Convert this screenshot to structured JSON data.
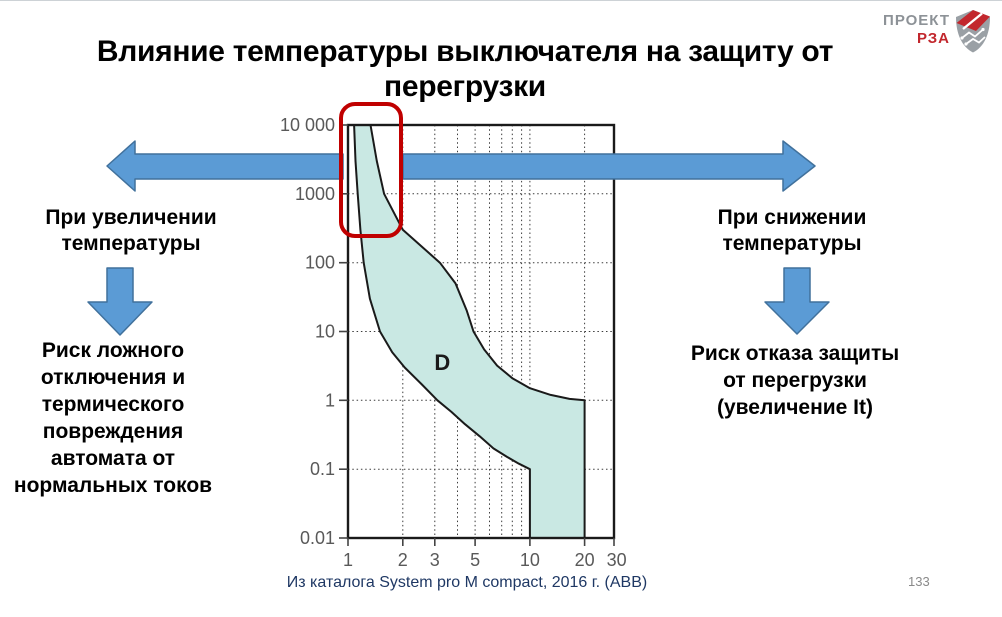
{
  "title": "Влияние температуры выключателя на защиту от перегрузки",
  "logo": {
    "line1": "ПРОЕКТ",
    "line2": "РЗА",
    "shield_icon": "shield-circuit-emblem",
    "gray": "#9aa0a5",
    "red": "#c2272d"
  },
  "annotations": {
    "left_condition": "При увеличении\nтемпературы",
    "left_risk": "Риск ложного\nотключения и\nтермического\nповреждения\nавтомата от\nнормальных токов",
    "right_condition": "При снижении\nтемпературы",
    "right_risk": "Риск отказа защиты\nот перегрузки\n(увеличение It)"
  },
  "caption": "Из каталога System pro M compact, 2016 г. (АВВ)",
  "page_number": "133",
  "colors": {
    "arrow_fill": "#5b9bd5",
    "arrow_stroke": "#41719c",
    "highlight_red": "#c00000",
    "band_fill": "#c9e8e3",
    "caption_navy": "#1f3864",
    "tick_gray": "#595959"
  },
  "chart_data": {
    "type": "area",
    "title": "",
    "xlabel": "",
    "ylabel": "",
    "description": "Time-current tripping band of curve D circuit breaker, log-log scale; x = multiples of rated current, y = time in seconds",
    "x_axis": {
      "scale": "log",
      "min": 1,
      "max": 29,
      "tick_values": [
        1,
        2,
        3,
        5,
        10,
        20,
        30
      ],
      "tick_labels": [
        "1",
        "2",
        "3",
        "5",
        "10",
        "20",
        "30"
      ],
      "grid_values": [
        2,
        3,
        4,
        5,
        6,
        7,
        8,
        9,
        10,
        20
      ]
    },
    "y_axis": {
      "scale": "log",
      "min": 0.01,
      "max": 10000,
      "tick_values": [
        10000,
        1000,
        100,
        10,
        1,
        0.1,
        0.01
      ],
      "tick_labels": [
        "10 000",
        "1000",
        "100",
        "10",
        "1",
        "0.1",
        "0.01"
      ],
      "grid_values": [
        1000,
        100,
        10,
        1,
        0.1
      ]
    },
    "series": [
      {
        "name": "D",
        "label": "D",
        "label_at": [
          3.3,
          3.6
        ],
        "fill": "#c9e8e3",
        "line": "#1a1a1a",
        "band_lower": [
          [
            1.08,
            10000
          ],
          [
            1.1,
            3000
          ],
          [
            1.13,
            1000
          ],
          [
            1.17,
            300
          ],
          [
            1.22,
            100
          ],
          [
            1.32,
            30
          ],
          [
            1.5,
            10
          ],
          [
            1.75,
            5
          ],
          [
            2.05,
            3
          ],
          [
            2.55,
            1.7
          ],
          [
            3.1,
            1
          ],
          [
            3.7,
            0.68
          ],
          [
            4.4,
            0.45
          ],
          [
            5.3,
            0.3
          ],
          [
            6.3,
            0.2
          ],
          [
            7.5,
            0.15
          ],
          [
            8.7,
            0.12
          ],
          [
            10,
            0.1
          ],
          [
            10,
            0.01
          ]
        ],
        "band_upper": [
          [
            1.33,
            10000
          ],
          [
            1.44,
            3000
          ],
          [
            1.58,
            1000
          ],
          [
            2.0,
            300
          ],
          [
            3.2,
            100
          ],
          [
            3.9,
            50
          ],
          [
            4.5,
            20
          ],
          [
            4.9,
            10
          ],
          [
            5.6,
            5.5
          ],
          [
            6.6,
            3.2
          ],
          [
            8.0,
            2.1
          ],
          [
            10.0,
            1.5
          ],
          [
            13.0,
            1.2
          ],
          [
            16.5,
            1.05
          ],
          [
            20,
            1.0
          ],
          [
            20,
            0.01
          ]
        ]
      }
    ]
  }
}
